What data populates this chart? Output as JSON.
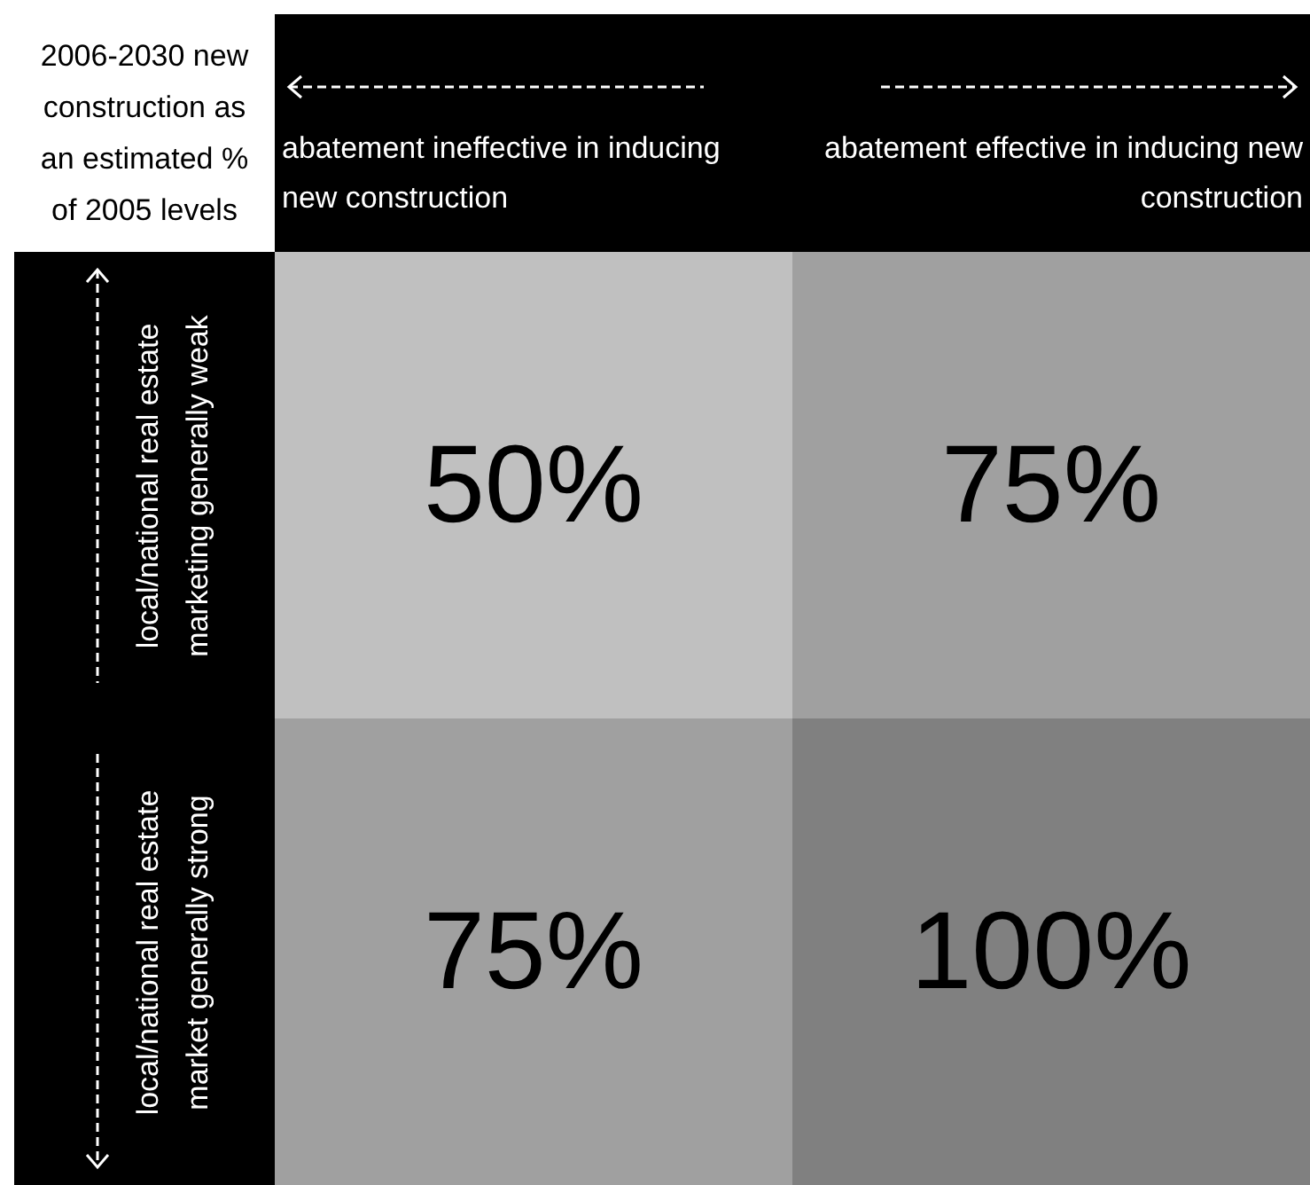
{
  "chart_data": {
    "type": "heatmap",
    "title": "2006-2030 new construction as an estimated % of 2005 levels",
    "categories": [
      "abatement ineffective in inducing new construction",
      "abatement effective in inducing new construction"
    ],
    "y_categories": [
      "local/national real estate marketing generally weak",
      "local/national real estate market generally strong"
    ],
    "cells": [
      [
        50,
        75
      ],
      [
        75,
        100
      ]
    ],
    "cell_labels": [
      [
        "50%",
        "75%"
      ],
      [
        "75%",
        "100%"
      ]
    ]
  }
}
